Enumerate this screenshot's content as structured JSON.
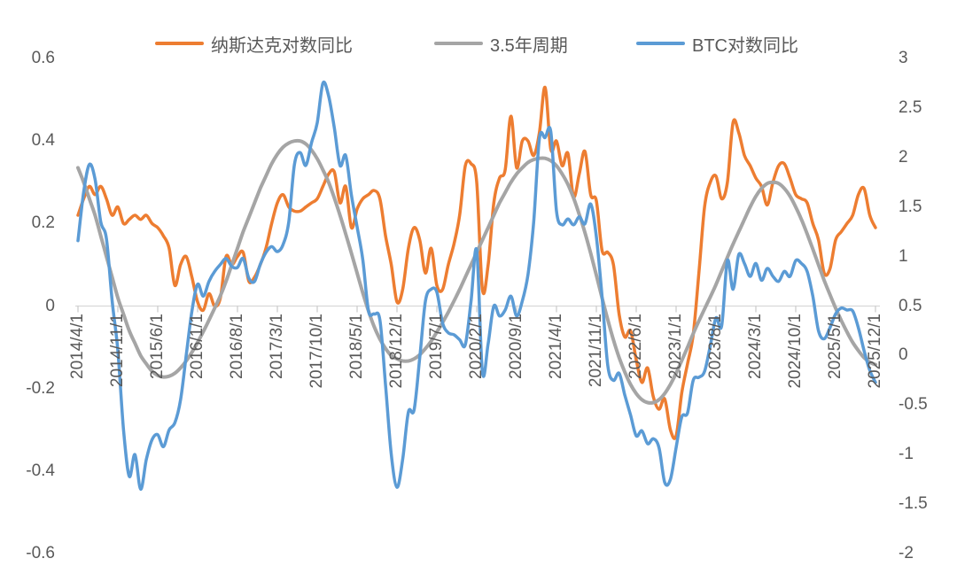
{
  "legend": [
    {
      "label": "纳斯达克对数同比",
      "color": "#ED7D31"
    },
    {
      "label": "3.5年周期",
      "color": "#A5A5A5"
    },
    {
      "label": "BTC对数同比",
      "color": "#5B9BD5"
    }
  ],
  "left_axis": {
    "tick_labels": [
      "0.6",
      "0.4",
      "0.2",
      "0",
      "-0.2",
      "-0.4",
      "-0.6"
    ],
    "min": -0.6,
    "max": 0.6
  },
  "right_axis": {
    "tick_labels": [
      "3",
      "2.5",
      "2",
      "1.5",
      "1",
      "0.5",
      "0",
      "-0.5",
      "-1",
      "-1.5",
      "-2"
    ],
    "min": -2,
    "max": 3
  },
  "x_axis": {
    "tick_labels": [
      "2014/4/1",
      "2014/11/1",
      "2015/6/1",
      "2016/1/1",
      "2016/8/1",
      "2017/3/1",
      "2017/10/1",
      "2018/5/1",
      "2018/12/1",
      "2019/7/1",
      "2020/2/1",
      "2020/9/1",
      "2021/4/1",
      "2021/11/1",
      "2022/6/1",
      "2023/1/1",
      "2023/8/1",
      "2024/3/1",
      "2024/10/1",
      "2025/5/1",
      "2025/12/1"
    ]
  },
  "chart_data": {
    "type": "line",
    "title": "",
    "frequency": "monthly",
    "start_month": "2014-04",
    "end_month": "2025-12",
    "left_ylim": [
      -0.6,
      0.6
    ],
    "right_ylim": [
      -2,
      3
    ],
    "grid": "off",
    "legend_position": "top",
    "series": [
      {
        "name": "纳斯达克对数同比",
        "axis": "left",
        "color": "#ED7D31",
        "width": 3.5,
        "values": [
          0.22,
          0.26,
          0.29,
          0.27,
          0.29,
          0.26,
          0.22,
          0.24,
          0.2,
          0.21,
          0.22,
          0.21,
          0.22,
          0.2,
          0.19,
          0.17,
          0.14,
          0.05,
          0.1,
          0.12,
          0.07,
          0.01,
          -0.01,
          0.03,
          0.0,
          0.02,
          0.12,
          0.1,
          0.12,
          0.13,
          0.06,
          0.07,
          0.1,
          0.14,
          0.2,
          0.25,
          0.27,
          0.24,
          0.23,
          0.23,
          0.24,
          0.25,
          0.26,
          0.29,
          0.32,
          0.325,
          0.25,
          0.29,
          0.19,
          0.235,
          0.26,
          0.27,
          0.28,
          0.26,
          0.17,
          0.1,
          0.01,
          0.04,
          0.14,
          0.19,
          0.16,
          0.08,
          0.14,
          0.05,
          0.04,
          0.1,
          0.15,
          0.22,
          0.34,
          0.345,
          0.3,
          0.04,
          0.1,
          0.25,
          0.31,
          0.33,
          0.46,
          0.335,
          0.4,
          0.4,
          0.365,
          0.42,
          0.53,
          0.38,
          0.4,
          0.34,
          0.37,
          0.265,
          0.32,
          0.375,
          0.27,
          0.255,
          0.135,
          0.13,
          0.1,
          -0.02,
          -0.075,
          -0.06,
          -0.13,
          -0.185,
          -0.15,
          -0.22,
          -0.25,
          -0.225,
          -0.3,
          -0.315,
          -0.21,
          -0.14,
          -0.07,
          0.08,
          0.24,
          0.3,
          0.315,
          0.26,
          0.3,
          0.445,
          0.42,
          0.365,
          0.34,
          0.31,
          0.29,
          0.245,
          0.3,
          0.34,
          0.345,
          0.31,
          0.27,
          0.26,
          0.25,
          0.2,
          0.16,
          0.08,
          0.09,
          0.16,
          0.18,
          0.2,
          0.22,
          0.27,
          0.285,
          0.22,
          0.19
        ]
      },
      {
        "name": "3.5年周期",
        "axis": "left",
        "color": "#A5A5A5",
        "width": 4,
        "values": [
          0.335,
          0.3,
          0.26,
          0.22,
          0.17,
          0.12,
          0.07,
          0.02,
          -0.02,
          -0.06,
          -0.09,
          -0.12,
          -0.14,
          -0.158,
          -0.168,
          -0.172,
          -0.17,
          -0.163,
          -0.15,
          -0.133,
          -0.112,
          -0.088,
          -0.062,
          -0.034,
          -0.005,
          0.025,
          0.06,
          0.1,
          0.14,
          0.18,
          0.215,
          0.25,
          0.285,
          0.315,
          0.345,
          0.368,
          0.385,
          0.395,
          0.4,
          0.4,
          0.393,
          0.378,
          0.357,
          0.33,
          0.3,
          0.262,
          0.22,
          0.175,
          0.128,
          0.08,
          0.032,
          -0.012,
          -0.05,
          -0.08,
          -0.103,
          -0.12,
          -0.128,
          -0.133,
          -0.133,
          -0.128,
          -0.118,
          -0.103,
          -0.085,
          -0.063,
          -0.04,
          -0.015,
          0.012,
          0.04,
          0.07,
          0.1,
          0.13,
          0.16,
          0.19,
          0.22,
          0.25,
          0.275,
          0.3,
          0.32,
          0.335,
          0.348,
          0.355,
          0.358,
          0.358,
          0.352,
          0.34,
          0.32,
          0.295,
          0.262,
          0.222,
          0.178,
          0.128,
          0.075,
          0.02,
          -0.033,
          -0.082,
          -0.125,
          -0.16,
          -0.19,
          -0.212,
          -0.227,
          -0.234,
          -0.234,
          -0.227,
          -0.212,
          -0.19,
          -0.163,
          -0.132,
          -0.1,
          -0.067,
          -0.036,
          -0.007,
          0.022,
          0.052,
          0.085,
          0.118,
          0.15,
          0.18,
          0.21,
          0.24,
          0.266,
          0.285,
          0.297,
          0.3,
          0.297,
          0.285,
          0.266,
          0.24,
          0.21,
          0.175,
          0.138,
          0.1,
          0.062,
          0.028,
          -0.005,
          -0.035,
          -0.063,
          -0.088,
          -0.108,
          -0.125,
          -0.136,
          -0.142
        ]
      },
      {
        "name": "BTC对数同比",
        "axis": "right",
        "color": "#5B9BD5",
        "width": 3.5,
        "values": [
          1.16,
          1.65,
          1.93,
          1.78,
          1.35,
          1.18,
          0.55,
          0.05,
          -0.75,
          -1.22,
          -1.0,
          -1.35,
          -1.05,
          -0.85,
          -0.8,
          -0.92,
          -0.75,
          -0.68,
          -0.45,
          0.0,
          0.45,
          0.72,
          0.6,
          0.75,
          0.85,
          0.92,
          0.98,
          0.9,
          0.89,
          0.98,
          0.78,
          0.75,
          0.92,
          1.04,
          1.1,
          1.05,
          1.12,
          1.35,
          1.93,
          2.05,
          1.92,
          2.15,
          2.35,
          2.75,
          2.62,
          2.3,
          1.92,
          2.02,
          1.62,
          1.3,
          0.97,
          0.45,
          0.42,
          0.36,
          -0.3,
          -1.0,
          -1.33,
          -1.05,
          -0.57,
          -0.55,
          -0.02,
          0.55,
          0.67,
          0.64,
          0.33,
          0.23,
          0.21,
          0.16,
          0.11,
          0.55,
          1.06,
          -0.17,
          0.12,
          0.5,
          0.4,
          0.46,
          0.6,
          0.4,
          0.55,
          0.82,
          1.35,
          2.19,
          2.2,
          2.26,
          1.46,
          1.32,
          1.38,
          1.32,
          1.4,
          1.33,
          1.53,
          1.2,
          0.6,
          -0.1,
          -0.25,
          -0.18,
          -0.4,
          -0.6,
          -0.81,
          -0.76,
          -0.89,
          -0.84,
          -0.93,
          -1.28,
          -1.25,
          -0.93,
          -0.62,
          -0.58,
          -0.25,
          -0.22,
          -0.16,
          0.1,
          0.38,
          0.3,
          0.96,
          0.67,
          1.02,
          0.93,
          0.8,
          0.93,
          0.76,
          0.88,
          0.8,
          0.75,
          0.85,
          0.8,
          0.96,
          0.93,
          0.85,
          0.6,
          0.25,
          0.17,
          0.28,
          0.42,
          0.48,
          0.46,
          0.45,
          0.28,
          0.05,
          -0.15,
          -0.27
        ]
      }
    ]
  }
}
